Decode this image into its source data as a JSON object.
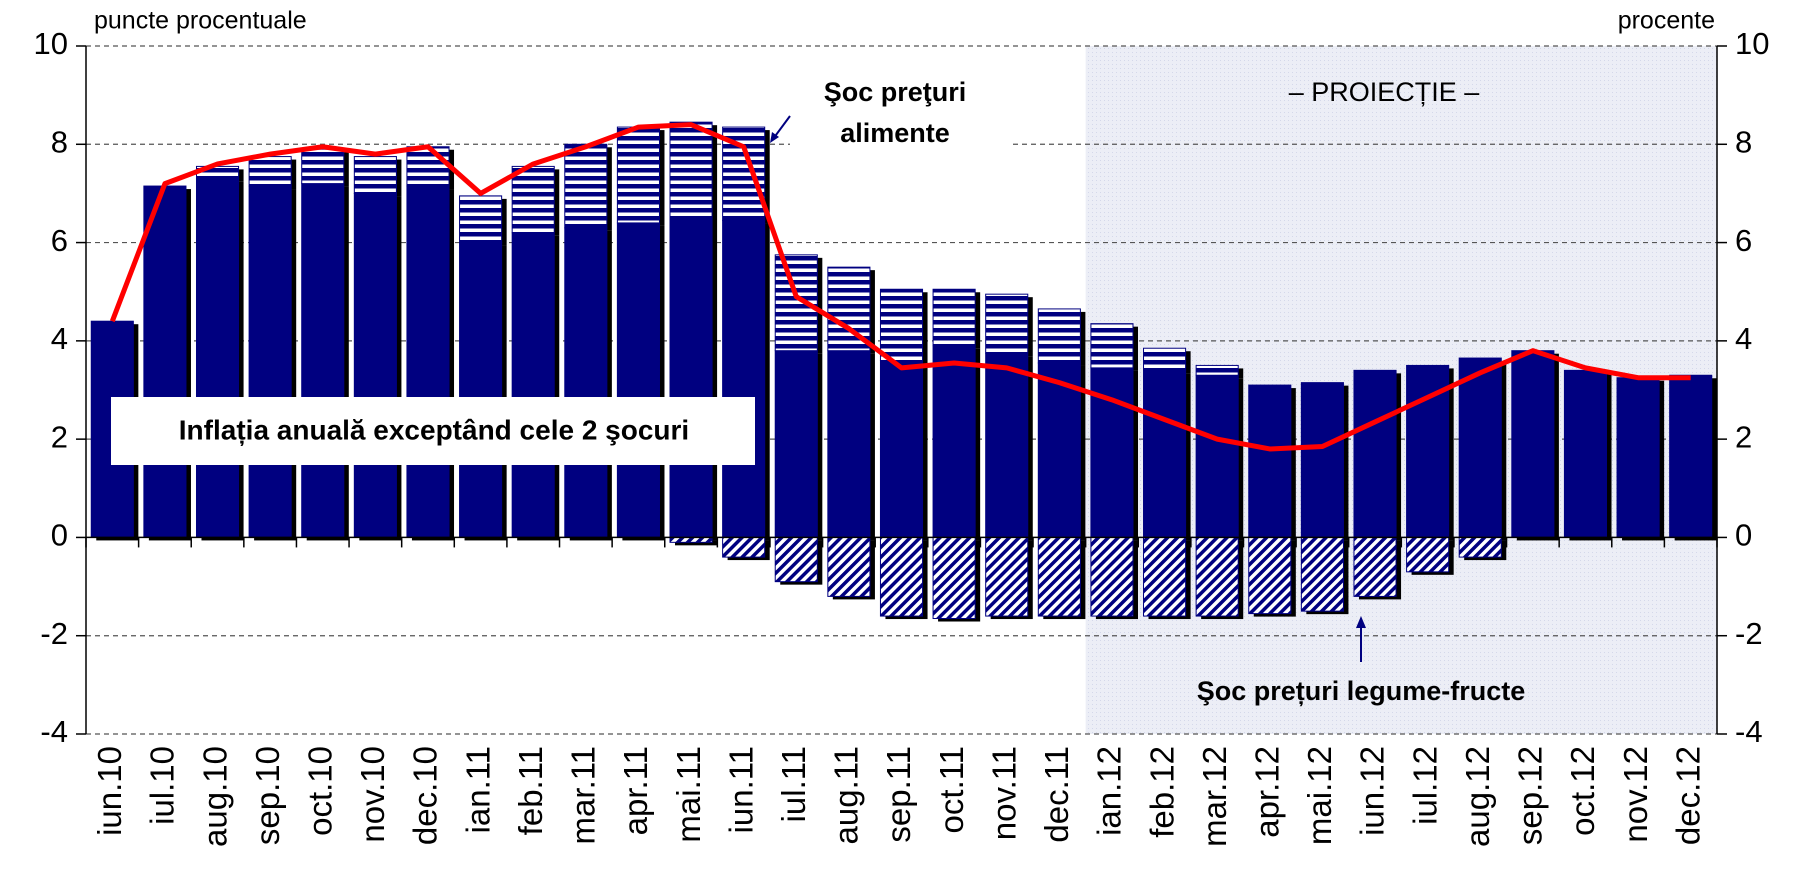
{
  "chart_data": {
    "type": "bar",
    "stacked": true,
    "y_axis_title": "puncte procentuale",
    "y2_axis_title": "procente",
    "categories": [
      "iun.10",
      "iul.10",
      "aug.10",
      "sep.10",
      "oct.10",
      "nov.10",
      "dec.10",
      "ian.11",
      "feb.11",
      "mar.11",
      "apr.11",
      "mai.11",
      "iun.11",
      "iul.11",
      "aug.11",
      "sep.11",
      "oct.11",
      "nov.11",
      "dec.11",
      "ian.12",
      "feb.12",
      "mar.12",
      "apr.12",
      "mai.12",
      "iun.12",
      "iul.12",
      "aug.12",
      "sep.12",
      "oct.12",
      "nov.12",
      "dec.12"
    ],
    "series": [
      {
        "type": "bar",
        "color": "#000080",
        "pattern": "solid",
        "values": [
          4.4,
          7.15,
          7.3,
          7.15,
          7.2,
          7.0,
          7.15,
          6.0,
          6.2,
          6.3,
          6.4,
          6.5,
          6.45,
          3.8,
          3.8,
          3.6,
          3.9,
          3.75,
          3.55,
          3.45,
          3.4,
          3.3,
          3.1,
          3.15,
          3.4,
          3.5,
          3.65,
          3.8,
          3.4,
          3.25,
          3.3
        ]
      },
      {
        "type": "bar",
        "color": "#000080",
        "pattern": "horizontal",
        "values": [
          0,
          0,
          0.25,
          0.6,
          0.7,
          0.75,
          0.8,
          0.95,
          1.35,
          1.7,
          1.95,
          1.95,
          1.9,
          1.95,
          1.7,
          1.45,
          1.15,
          1.2,
          1.1,
          0.9,
          0.45,
          0.2,
          0,
          0,
          0,
          0,
          0,
          0,
          0,
          0,
          0
        ]
      },
      {
        "type": "bar",
        "color": "#000080",
        "pattern": "diagonal",
        "values": [
          0,
          0,
          0,
          0,
          0,
          0,
          0,
          0,
          0,
          0,
          0,
          -0.1,
          -0.4,
          -0.9,
          -1.2,
          -1.6,
          -1.65,
          -1.6,
          -1.6,
          -1.6,
          -1.6,
          -1.6,
          -1.55,
          -1.5,
          -1.2,
          -0.7,
          -0.4,
          0,
          0,
          0,
          0
        ]
      },
      {
        "type": "line",
        "color": "#ff0000",
        "axis": "y2",
        "values": [
          4.4,
          7.2,
          7.6,
          7.8,
          7.95,
          7.8,
          7.95,
          7.0,
          7.6,
          7.95,
          8.35,
          8.4,
          7.95,
          4.9,
          4.25,
          3.45,
          3.55,
          3.45,
          3.15,
          2.8,
          2.4,
          2.0,
          1.8,
          1.85,
          2.35,
          2.85,
          3.35,
          3.8,
          3.45,
          3.25,
          3.25
        ]
      }
    ],
    "ylim": [
      -4,
      10
    ],
    "yticks": [
      -4,
      -2,
      0,
      2,
      4,
      6,
      8,
      10
    ],
    "y2lim": [
      -4,
      10
    ],
    "y2ticks": [
      -4,
      -2,
      0,
      2,
      4,
      6,
      8,
      10
    ],
    "grid": true,
    "projection_from": "ian.12",
    "annotations": {
      "projection": "– PROIECȚIE –",
      "food_shock": [
        "Şoc preţuri",
        "alimente"
      ],
      "core_inflation": "Inflația anuală exceptând cele 2 şocuri",
      "vegetable_shock": "Şoc prețuri legume-fructe"
    }
  }
}
